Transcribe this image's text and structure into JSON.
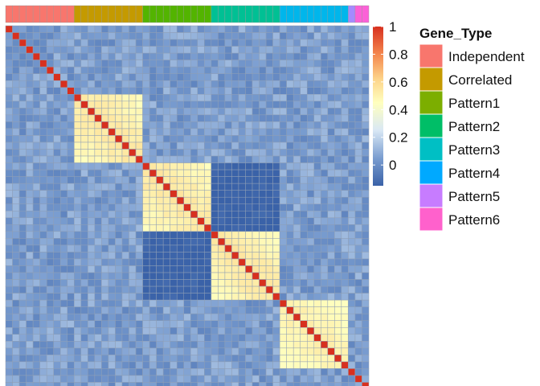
{
  "chart_data": {
    "type": "heatmap",
    "title": "",
    "n_genes": 53,
    "groups": [
      {
        "name": "Independent",
        "size": 10,
        "color": "#F8766D"
      },
      {
        "name": "Correlated",
        "size": 10,
        "color": "#C49A00"
      },
      {
        "name": "Pattern1",
        "size": 10,
        "color": "#53B400"
      },
      {
        "name": "Pattern2",
        "size": 10,
        "color": "#00C094"
      },
      {
        "name": "Pattern3",
        "size": 10,
        "color": "#00B6EB"
      },
      {
        "name": "Pattern4",
        "size": 1,
        "color": "#A58AFF"
      },
      {
        "name": "Pattern5",
        "size": 1,
        "color": "#FB61D7"
      },
      {
        "name": "Pattern6",
        "size": 1,
        "color": "#FB61D7"
      }
    ],
    "correlated_blocks": [
      {
        "start": 10,
        "end": 19,
        "value": 0.55
      },
      {
        "start": 20,
        "end": 29,
        "value": 0.55
      },
      {
        "start": 30,
        "end": 39,
        "value": 0.55
      },
      {
        "start": 40,
        "end": 49,
        "value": 0.52
      }
    ],
    "diagonal_value": 1.0,
    "background_value": 0.05,
    "anticorrelated_pairs": [
      {
        "a": [
          20,
          29
        ],
        "b": [
          30,
          39
        ],
        "value": -0.15
      }
    ],
    "colorbar": {
      "ticks": [
        "1",
        "0.8",
        "0.6",
        "0.4",
        "0.2",
        "0"
      ],
      "tick_values": [
        1,
        0.8,
        0.6,
        0.4,
        0.2,
        0
      ],
      "range": [
        -0.15,
        1
      ],
      "stops": [
        {
          "value": -0.15,
          "color": "#3A62A8"
        },
        {
          "value": 0.05,
          "color": "#7A9DD0"
        },
        {
          "value": 0.25,
          "color": "#D9E8F5"
        },
        {
          "value": 0.45,
          "color": "#FFFFBF"
        },
        {
          "value": 0.62,
          "color": "#FDD48A"
        },
        {
          "value": 0.8,
          "color": "#F4874E"
        },
        {
          "value": 1.0,
          "color": "#D7301F"
        }
      ]
    },
    "legend": {
      "title": "Gene_Type",
      "items": [
        {
          "label": "Independent",
          "color": "#F8766D"
        },
        {
          "label": "Correlated",
          "color": "#C49A00"
        },
        {
          "label": "Pattern1",
          "color": "#7CAE00"
        },
        {
          "label": "Pattern2",
          "color": "#00BE67"
        },
        {
          "label": "Pattern3",
          "color": "#00BFC4"
        },
        {
          "label": "Pattern4",
          "color": "#00A9FF"
        },
        {
          "label": "Pattern5",
          "color": "#C77CFF"
        },
        {
          "label": "Pattern6",
          "color": "#FF61CC"
        }
      ],
      "placement": "right"
    }
  }
}
